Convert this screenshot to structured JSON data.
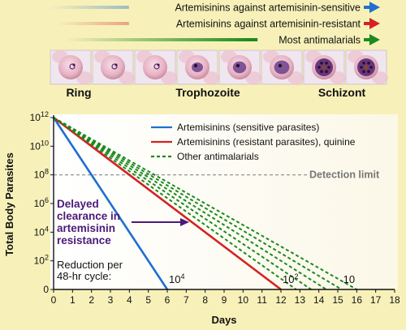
{
  "header": {
    "arrows": [
      {
        "label": "Artemisinins against artemisinin-sensitive",
        "color": "#1f6fd1"
      },
      {
        "label": "Artemisinins against artemisinin-resistant",
        "color": "#d42222"
      },
      {
        "label": "Most antimalarials",
        "color": "#1c8a1c"
      }
    ],
    "stages": [
      {
        "label": "Ring"
      },
      {
        "label": "Trophozoite"
      },
      {
        "label": "Schizont"
      }
    ]
  },
  "chart_data": {
    "type": "line",
    "xlabel": "Days",
    "ylabel": "Total Body Parasites",
    "xlim": [
      0,
      18
    ],
    "x_ticks": [
      "0",
      "1",
      "2",
      "3",
      "4",
      "5",
      "6",
      "7",
      "8",
      "9",
      "10",
      "11",
      "12",
      "13",
      "14",
      "15",
      "16",
      "17",
      "18"
    ],
    "y_ticks": [
      {
        "value": 0,
        "base": "0",
        "exp": ""
      },
      {
        "value": 2,
        "base": "10",
        "exp": "2"
      },
      {
        "value": 4,
        "base": "10",
        "exp": "4"
      },
      {
        "value": 6,
        "base": "10",
        "exp": "6"
      },
      {
        "value": 8,
        "base": "10",
        "exp": "8"
      },
      {
        "value": 10,
        "base": "10",
        "exp": "10"
      },
      {
        "value": 12,
        "base": "10",
        "exp": "12"
      }
    ],
    "ylim_log10": [
      0,
      12
    ],
    "series": [
      {
        "name": "Artemisinins (sensitive parasites)",
        "color": "#1f6fd1",
        "style": "solid",
        "x": [
          0,
          6
        ],
        "y_log10": [
          12,
          0
        ]
      },
      {
        "name": "Artemisinins (resistant parasites), quinine",
        "color": "#d42222",
        "style": "solid",
        "x": [
          0,
          12
        ],
        "y_log10": [
          12,
          0
        ]
      },
      {
        "name": "Other antimalarials",
        "color": "#1c8a1c",
        "style": "dashed",
        "x": [
          0,
          12.8
        ],
        "y_log10": [
          12,
          0
        ]
      },
      {
        "name": "",
        "color": "#1c8a1c",
        "style": "dashed",
        "x": [
          0,
          13.6
        ],
        "y_log10": [
          12,
          0
        ]
      },
      {
        "name": "",
        "color": "#1c8a1c",
        "style": "dashed",
        "x": [
          0,
          14.4
        ],
        "y_log10": [
          12,
          0
        ]
      },
      {
        "name": "",
        "color": "#1c8a1c",
        "style": "dashed",
        "x": [
          0,
          15.2
        ],
        "y_log10": [
          12,
          0
        ]
      },
      {
        "name": "",
        "color": "#1c8a1c",
        "style": "dashed",
        "x": [
          0,
          16
        ],
        "y_log10": [
          12,
          0
        ]
      }
    ],
    "legend": [
      {
        "label": "Artemisinins (sensitive parasites)",
        "color": "#1f6fd1",
        "style": "solid"
      },
      {
        "label": "Artemisinins (resistant parasites), quinine",
        "color": "#d42222",
        "style": "solid"
      },
      {
        "label": "Other antimalarials",
        "color": "#1c8a1c",
        "style": "dashed"
      }
    ],
    "legend_position": "top-right",
    "detection_limit": {
      "y_log10": 8,
      "label": "Detection limit",
      "color": "#888888"
    },
    "annotations": {
      "delayed": [
        "Delayed",
        "clearance in",
        "artemisinin",
        "resistance"
      ],
      "reduction": [
        "Reduction per",
        "48-hr cycle:"
      ],
      "reduction_values": [
        {
          "x": 6,
          "base": "10",
          "exp": "4"
        },
        {
          "x": 12,
          "base": "10",
          "exp": "2"
        },
        {
          "x": 15.2,
          "base": "10",
          "exp": ""
        }
      ],
      "arrow_color": "#4b1a78"
    }
  }
}
